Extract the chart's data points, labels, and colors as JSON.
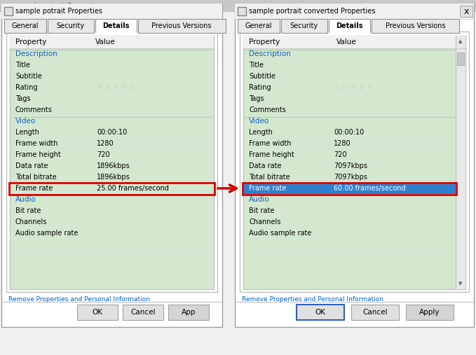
{
  "fig_bg": "#f0f0f0",
  "panel_bg": "#ffffff",
  "content_bg": "#d4e8d0",
  "highlight_blue": "#3080d0",
  "highlight_blue_text": "#ffffff",
  "arrow_color": "#cc0000",
  "section_label_color": "#1060c0",
  "link_color": "#0060c0",
  "title_bar_bg": "#f0f0f0",
  "button_bg": "#e0e0e0",
  "button_border": "#a0a0a0",
  "dialog_border": "#a0a0a0",
  "left_title": "sample potrait Properties",
  "right_title": "sample portrait converted Properties",
  "tabs": [
    "General",
    "Security",
    "Details",
    "Previous Versions"
  ],
  "active_tab": "Details",
  "left_data_rate": "1896kbps",
  "left_total_bitrate": "1896kbps",
  "left_frame_rate": "25.00 frames/second",
  "right_data_rate": "7097kbps",
  "right_total_bitrate": "7097kbps",
  "right_frame_rate": "60.00 frames/second",
  "link_text": "Remove Properties and Personal Information",
  "left_buttons": [
    "OK",
    "Cancel",
    "App"
  ],
  "right_buttons": [
    "OK",
    "Cancel",
    "Apply"
  ]
}
